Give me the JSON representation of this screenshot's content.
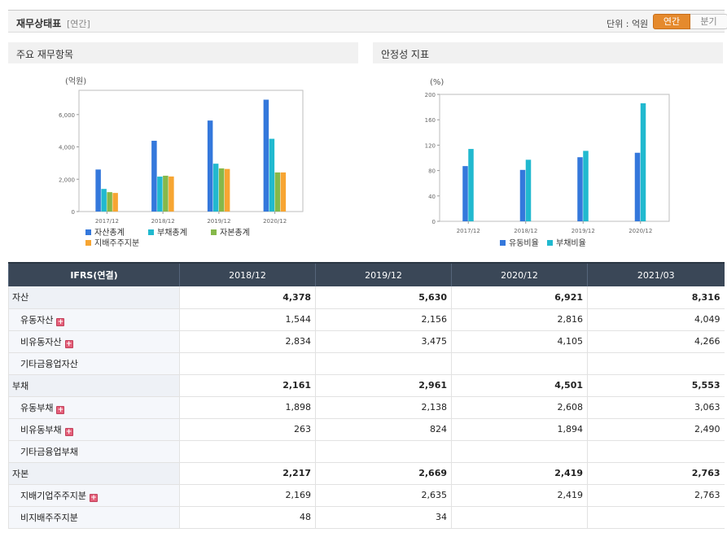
{
  "header": {
    "title": "재무상태표",
    "subtitle": "[연간]",
    "unit_label": "단위 : 억원",
    "toggle_annual": "연간",
    "toggle_quarter": "분기"
  },
  "colors": {
    "blue": "#3478dc",
    "cyan": "#21b9cf",
    "green": "#86b84a",
    "orange": "#f7a532",
    "header_bg": "#3a4757",
    "active_toggle": "#e58a2d"
  },
  "chart_data": [
    {
      "type": "bar",
      "panel_title": "주요 재무항목",
      "y_unit_label": "(억원)",
      "categories": [
        "2017/12",
        "2018/12",
        "2019/12",
        "2020/12"
      ],
      "yticks": [
        "0",
        "2,000",
        "4,000",
        "6,000"
      ],
      "ylim": [
        0,
        7500
      ],
      "series": [
        {
          "name": "자산총계",
          "color": "#3478dc",
          "values": [
            2600,
            4378,
            5630,
            6921
          ]
        },
        {
          "name": "부채총계",
          "color": "#21b9cf",
          "values": [
            1400,
            2161,
            2961,
            4501
          ]
        },
        {
          "name": "자본총계",
          "color": "#86b84a",
          "values": [
            1200,
            2217,
            2669,
            2419
          ]
        },
        {
          "name": "지배주주지분",
          "color": "#f7a532",
          "values": [
            1150,
            2169,
            2635,
            2419
          ]
        }
      ],
      "grid": false,
      "legend_position": "bottom"
    },
    {
      "type": "bar",
      "panel_title": "안정성 지표",
      "y_unit_label": "(%)",
      "categories": [
        "2017/12",
        "2018/12",
        "2019/12",
        "2020/12"
      ],
      "yticks": [
        "0",
        "40",
        "80",
        "120",
        "160",
        "200"
      ],
      "ylim": [
        0,
        200
      ],
      "series": [
        {
          "name": "유동비율",
          "color": "#3478dc",
          "values": [
            87,
            81,
            101,
            108
          ]
        },
        {
          "name": "부채비율",
          "color": "#21b9cf",
          "values": [
            114,
            97,
            111,
            186
          ]
        }
      ],
      "grid": false,
      "legend_position": "bottom"
    }
  ],
  "table": {
    "corner": "IFRS(연결)",
    "periods": [
      "2018/12",
      "2019/12",
      "2020/12",
      "2021/03"
    ],
    "rows": [
      {
        "label": "자산",
        "bold": true,
        "plus": false,
        "sub": false,
        "values": [
          "4,378",
          "5,630",
          "6,921",
          "8,316"
        ]
      },
      {
        "label": "유동자산",
        "bold": false,
        "plus": true,
        "sub": true,
        "values": [
          "1,544",
          "2,156",
          "2,816",
          "4,049"
        ]
      },
      {
        "label": "비유동자산",
        "bold": false,
        "plus": true,
        "sub": true,
        "values": [
          "2,834",
          "3,475",
          "4,105",
          "4,266"
        ]
      },
      {
        "label": "기타금융업자산",
        "bold": false,
        "plus": false,
        "sub": true,
        "values": [
          "",
          "",
          "",
          ""
        ]
      },
      {
        "label": "부채",
        "bold": true,
        "plus": false,
        "sub": false,
        "values": [
          "2,161",
          "2,961",
          "4,501",
          "5,553"
        ]
      },
      {
        "label": "유동부채",
        "bold": false,
        "plus": true,
        "sub": true,
        "values": [
          "1,898",
          "2,138",
          "2,608",
          "3,063"
        ]
      },
      {
        "label": "비유동부채",
        "bold": false,
        "plus": true,
        "sub": true,
        "values": [
          "263",
          "824",
          "1,894",
          "2,490"
        ]
      },
      {
        "label": "기타금융업부채",
        "bold": false,
        "plus": false,
        "sub": true,
        "values": [
          "",
          "",
          "",
          ""
        ]
      },
      {
        "label": "자본",
        "bold": true,
        "plus": false,
        "sub": false,
        "values": [
          "2,217",
          "2,669",
          "2,419",
          "2,763"
        ]
      },
      {
        "label": "지배기업주주지분",
        "bold": false,
        "plus": true,
        "sub": true,
        "values": [
          "2,169",
          "2,635",
          "2,419",
          "2,763"
        ]
      },
      {
        "label": "비지배주주지분",
        "bold": false,
        "plus": false,
        "sub": true,
        "values": [
          "48",
          "34",
          "",
          ""
        ]
      }
    ]
  }
}
